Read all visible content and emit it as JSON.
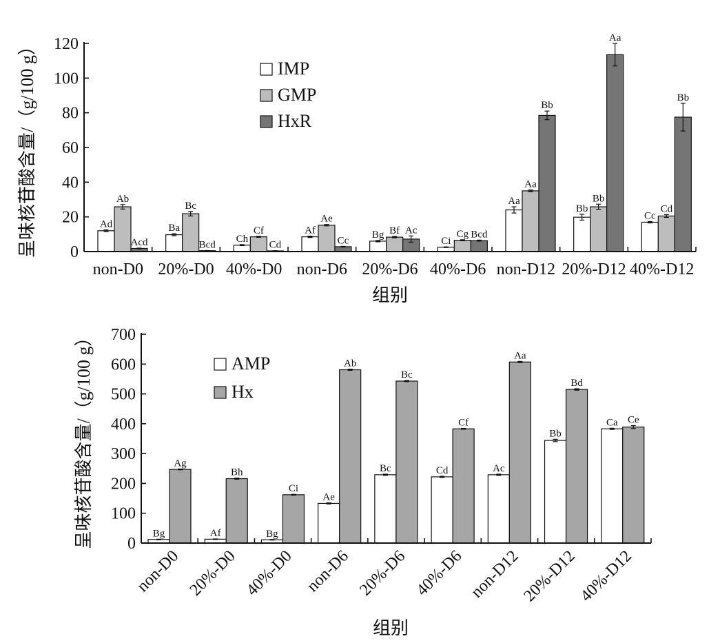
{
  "colors": {
    "IMP": "#ffffff",
    "GMP": "#bdbdbd",
    "HxR": "#757575",
    "AMP": "#ffffff",
    "Hx": "#a6a6a6"
  },
  "chart_data": [
    {
      "type": "bar",
      "title": "",
      "xlabel": "组别",
      "ylabel": "呈味核苷酸含量/（g/100 g）",
      "ylim": [
        0,
        120
      ],
      "yticks": [
        0,
        20,
        40,
        60,
        80,
        100,
        120
      ],
      "grid": false,
      "legend_position": "top-center",
      "categories": [
        "non-D0",
        "20%-D0",
        "40%-D0",
        "non-D6",
        "20%-D6",
        "40%-D6",
        "non-D12",
        "20%-D12",
        "40%-D12"
      ],
      "series": [
        {
          "name": "IMP",
          "values": [
            12,
            9.7,
            3.7,
            8.5,
            6,
            2.5,
            24,
            19.8,
            16.9
          ],
          "errors": [
            0.5,
            0.6,
            0.3,
            0.4,
            0.4,
            0.2,
            1.8,
            1.7,
            0.4
          ],
          "labels": [
            "Ad",
            "Ba",
            "Ch",
            "Af",
            "Bg",
            "Ci",
            "Aa",
            "Bb",
            "Cc"
          ]
        },
        {
          "name": "GMP",
          "values": [
            25.8,
            21.8,
            8.5,
            15.2,
            8.3,
            6.5,
            35,
            25.8,
            20.5
          ],
          "errors": [
            1.3,
            1.3,
            0.3,
            0.4,
            0.4,
            0.3,
            0.5,
            1.5,
            0.8
          ],
          "labels": [
            "Ab",
            "Bc",
            "Cf",
            "Ae",
            "Bf",
            "Cg",
            "Aa",
            "Bb",
            "Cd"
          ]
        },
        {
          "name": "HxR",
          "values": [
            1.8,
            0.5,
            0.4,
            2.8,
            7.2,
            6.3,
            78.5,
            113.5,
            77.5
          ],
          "errors": [
            0.2,
            0.1,
            0.1,
            0.2,
            1.8,
            0.3,
            2.5,
            6.5,
            8
          ],
          "labels": [
            "Acd",
            "Bcd",
            "Cd",
            "Cc",
            "Ac",
            "Bcd",
            "Bb",
            "Aa",
            "Bb"
          ]
        }
      ]
    },
    {
      "type": "bar",
      "title": "",
      "xlabel": "组别",
      "ylabel": "呈味核苷酸含量/（g/100 g）",
      "ylim": [
        0,
        700
      ],
      "yticks": [
        0,
        100,
        200,
        300,
        400,
        500,
        600,
        700
      ],
      "grid": false,
      "legend_position": "top-left",
      "categories": [
        "non-D0",
        "20%-D0",
        "40%-D0",
        "non-D6",
        "20%-D6",
        "40%-D6",
        "non-D12",
        "20%-D12",
        "40%-D12"
      ],
      "series": [
        {
          "name": "AMP",
          "values": [
            12,
            13,
            11,
            133,
            229,
            222,
            229,
            344,
            383
          ],
          "errors": [
            1,
            1,
            1,
            2,
            2,
            2,
            2,
            4,
            2
          ],
          "labels": [
            "Bg",
            "Af",
            "Bg",
            "Ae",
            "Bc",
            "Cd",
            "Ac",
            "Bb",
            "Ca"
          ]
        },
        {
          "name": "Hx",
          "values": [
            247,
            216,
            162,
            581,
            543,
            383,
            607,
            515,
            389
          ],
          "errors": [
            1.5,
            2,
            1.5,
            2,
            2,
            1.5,
            2,
            2.5,
            5
          ],
          "labels": [
            "Ag",
            "Bh",
            "Ci",
            "Ab",
            "Bc",
            "Cf",
            "Aa",
            "Bd",
            "Ce"
          ]
        }
      ]
    }
  ]
}
